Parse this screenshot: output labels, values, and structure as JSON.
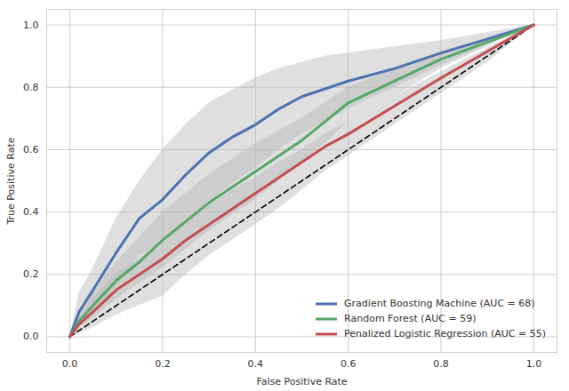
{
  "chart_data": {
    "type": "line",
    "x_label": "False Positive Rate",
    "y_label": "True Positive Rate",
    "x": [
      0,
      0.02,
      0.05,
      0.1,
      0.15,
      0.2,
      0.25,
      0.3,
      0.35,
      0.4,
      0.45,
      0.5,
      0.55,
      0.6,
      0.7,
      0.8,
      0.9,
      1
    ],
    "series": [
      {
        "name": "Gradient Boosting Machine (AUC = 68)",
        "color": "#4c72b0",
        "values": [
          0,
          0.08,
          0.15,
          0.27,
          0.38,
          0.44,
          0.52,
          0.59,
          0.64,
          0.68,
          0.73,
          0.77,
          0.795,
          0.82,
          0.86,
          0.91,
          0.955,
          1
        ],
        "lower": [
          0,
          0.04,
          0.08,
          0.16,
          0.26,
          0.3,
          0.37,
          0.43,
          0.49,
          0.54,
          0.6,
          0.65,
          0.69,
          0.73,
          0.8,
          0.87,
          0.935,
          1
        ],
        "upper": [
          0,
          0.14,
          0.22,
          0.38,
          0.5,
          0.6,
          0.68,
          0.75,
          0.79,
          0.83,
          0.86,
          0.88,
          0.9,
          0.91,
          0.93,
          0.95,
          0.975,
          1
        ]
      },
      {
        "name": "Random Forest (AUC = 59)",
        "color": "#55a868",
        "values": [
          0,
          0.05,
          0.1,
          0.18,
          0.24,
          0.31,
          0.37,
          0.43,
          0.48,
          0.53,
          0.58,
          0.63,
          0.69,
          0.75,
          0.82,
          0.89,
          0.945,
          1
        ],
        "lower": [
          0,
          0.03,
          0.06,
          0.12,
          0.17,
          0.22,
          0.28,
          0.34,
          0.39,
          0.44,
          0.5,
          0.56,
          0.62,
          0.69,
          0.77,
          0.86,
          0.93,
          1
        ],
        "upper": [
          0,
          0.08,
          0.14,
          0.24,
          0.32,
          0.4,
          0.46,
          0.52,
          0.57,
          0.62,
          0.66,
          0.7,
          0.75,
          0.8,
          0.86,
          0.91,
          0.955,
          1
        ]
      },
      {
        "name": "Penalized Logistic Regression (AUC = 55)",
        "color": "#c44e52",
        "values": [
          0,
          0.04,
          0.08,
          0.15,
          0.2,
          0.25,
          0.31,
          0.36,
          0.41,
          0.46,
          0.51,
          0.56,
          0.61,
          0.65,
          0.74,
          0.83,
          0.915,
          1
        ],
        "lower": [
          0,
          0.01,
          0.03,
          0.07,
          0.1,
          0.13,
          0.2,
          0.26,
          0.31,
          0.36,
          0.41,
          0.47,
          0.53,
          0.58,
          0.68,
          0.78,
          0.88,
          1
        ],
        "upper": [
          0,
          0.06,
          0.12,
          0.2,
          0.25,
          0.31,
          0.37,
          0.42,
          0.47,
          0.51,
          0.56,
          0.6,
          0.65,
          0.69,
          0.77,
          0.85,
          0.925,
          1
        ]
      },
      {
        "name": null,
        "color": "#000000",
        "line_style": "dashed",
        "values": [
          0,
          0.02,
          0.05,
          0.1,
          0.15,
          0.2,
          0.25,
          0.3,
          0.35,
          0.4,
          0.45,
          0.5,
          0.55,
          0.6,
          0.7,
          0.8,
          0.9,
          1
        ]
      }
    ],
    "xlim": [
      -0.05,
      1.05
    ],
    "ylim": [
      -0.05,
      1.05
    ],
    "xticks": [
      {
        "value": 0,
        "label": "0.0"
      },
      0.2,
      0.4,
      0.6,
      0.8,
      {
        "value": 1,
        "label": "1.0"
      }
    ],
    "yticks": [
      {
        "value": 0,
        "label": "0.0"
      },
      0.2,
      0.4,
      0.6,
      0.8,
      {
        "value": 1,
        "label": "1.0"
      }
    ],
    "grid": true,
    "legend": "lower right"
  }
}
